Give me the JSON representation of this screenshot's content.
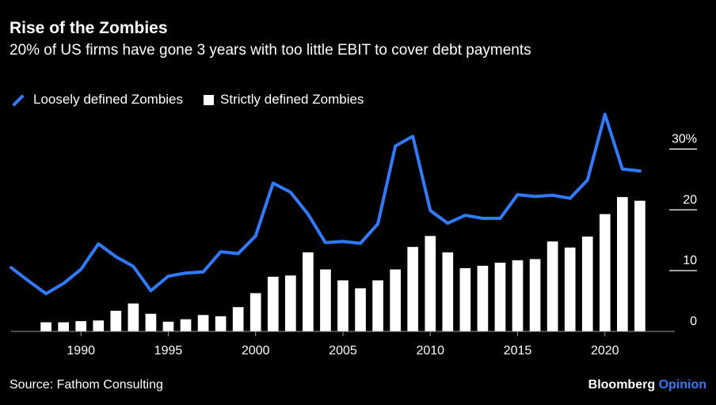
{
  "title": "Rise of the Zombies",
  "subtitle": "20% of US firms have gone 3 years with too little EBIT to cover debt payments",
  "legend": {
    "line_label": "Loosely defined Zombies",
    "bar_label": "Strictly defined Zombies"
  },
  "footer": {
    "source": "Source: Fathom Consulting",
    "brand": "Bloomberg",
    "brand_suffix": "Opinion"
  },
  "colors": {
    "background": "#000000",
    "line": "#2f7bff",
    "bars": "#ffffff",
    "text": "#ffffff",
    "grid": "#ffffff"
  },
  "chart_data": {
    "type": "bar",
    "xlim": [
      1986,
      2024
    ],
    "ylim": [
      0,
      35
    ],
    "x_ticks": [
      1990,
      1995,
      2000,
      2005,
      2010,
      2015,
      2020
    ],
    "y_ticks": [
      {
        "value": 0,
        "label": "0"
      },
      {
        "value": 10,
        "label": "10"
      },
      {
        "value": 20,
        "label": "20"
      },
      {
        "value": 30,
        "label": "30%"
      }
    ],
    "series": [
      {
        "name": "Strictly defined Zombies",
        "type": "bar",
        "x": [
          1988,
          1989,
          1990,
          1991,
          1992,
          1993,
          1994,
          1995,
          1996,
          1997,
          1998,
          1999,
          2000,
          2001,
          2002,
          2003,
          2004,
          2005,
          2006,
          2007,
          2008,
          2009,
          2010,
          2011,
          2012,
          2013,
          2014,
          2015,
          2016,
          2017,
          2018,
          2019,
          2020,
          2021,
          2022
        ],
        "values": [
          1.5,
          1.5,
          1.7,
          1.8,
          3.4,
          4.6,
          2.9,
          1.6,
          2.0,
          2.7,
          2.5,
          4.0,
          6.3,
          9.0,
          9.2,
          13.0,
          10.2,
          8.4,
          7.1,
          8.4,
          10.2,
          13.9,
          15.7,
          13.0,
          10.4,
          10.8,
          11.3,
          11.7,
          11.9,
          14.8,
          13.8,
          15.6,
          19.3,
          22.1,
          21.5
        ]
      },
      {
        "name": "Loosely defined Zombies",
        "type": "line",
        "x": [
          1986,
          1987,
          1988,
          1989,
          1990,
          1991,
          1992,
          1993,
          1994,
          1995,
          1996,
          1997,
          1998,
          1999,
          2000,
          2001,
          2002,
          2003,
          2004,
          2005,
          2006,
          2007,
          2008,
          2009,
          2010,
          2011,
          2012,
          2013,
          2014,
          2015,
          2016,
          2017,
          2018,
          2019,
          2020,
          2021,
          2022
        ],
        "values": [
          10.5,
          8.3,
          6.2,
          7.9,
          10.2,
          14.4,
          12.3,
          10.7,
          6.7,
          9.1,
          9.6,
          9.8,
          13.1,
          12.8,
          15.7,
          24.4,
          22.9,
          19.3,
          14.6,
          14.8,
          14.5,
          17.7,
          30.5,
          32.1,
          19.9,
          17.8,
          19.1,
          18.6,
          18.6,
          22.5,
          22.2,
          22.4,
          21.9,
          24.9,
          35.7,
          26.7,
          26.4
        ]
      }
    ]
  }
}
